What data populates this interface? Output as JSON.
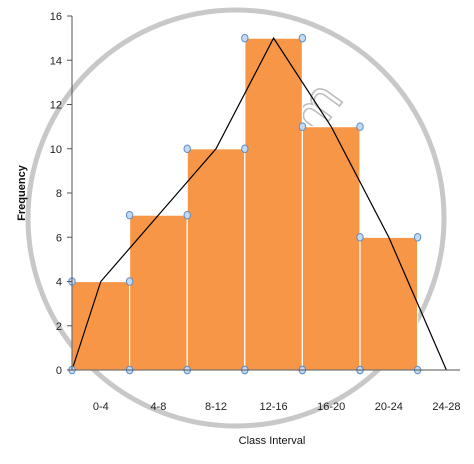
{
  "chart_data": {
    "type": "bar",
    "subtype": "histogram-with-frequency-polygon",
    "categories": [
      "0-4",
      "4-8",
      "8-12",
      "12-16",
      "16-20",
      "20-24",
      "24-28"
    ],
    "bin_edges": [
      0,
      4,
      8,
      12,
      16,
      20,
      24,
      28
    ],
    "values": [
      4,
      7,
      10,
      15,
      11,
      6,
      0
    ],
    "polygon": {
      "x": [
        0,
        2,
        6,
        10,
        14,
        18,
        22,
        26
      ],
      "y": [
        0,
        4,
        7,
        10,
        15,
        11,
        6,
        0
      ]
    },
    "xlabel": "Class Interval",
    "ylabel": "Frequency",
    "ylim": [
      0,
      16
    ],
    "yticks": [
      0,
      2,
      4,
      6,
      8,
      10,
      12,
      14,
      16
    ],
    "grid": false,
    "legend": "none",
    "colors": {
      "bar_fill": "#f79646",
      "bar_stroke": "#ffffff",
      "marker_fill": "#c5d9f1",
      "marker_stroke": "#5b8cc4",
      "polygon_stroke": "#000000",
      "axis": "#555555"
    }
  },
  "watermark": {
    "text": "shaalaa.com"
  }
}
